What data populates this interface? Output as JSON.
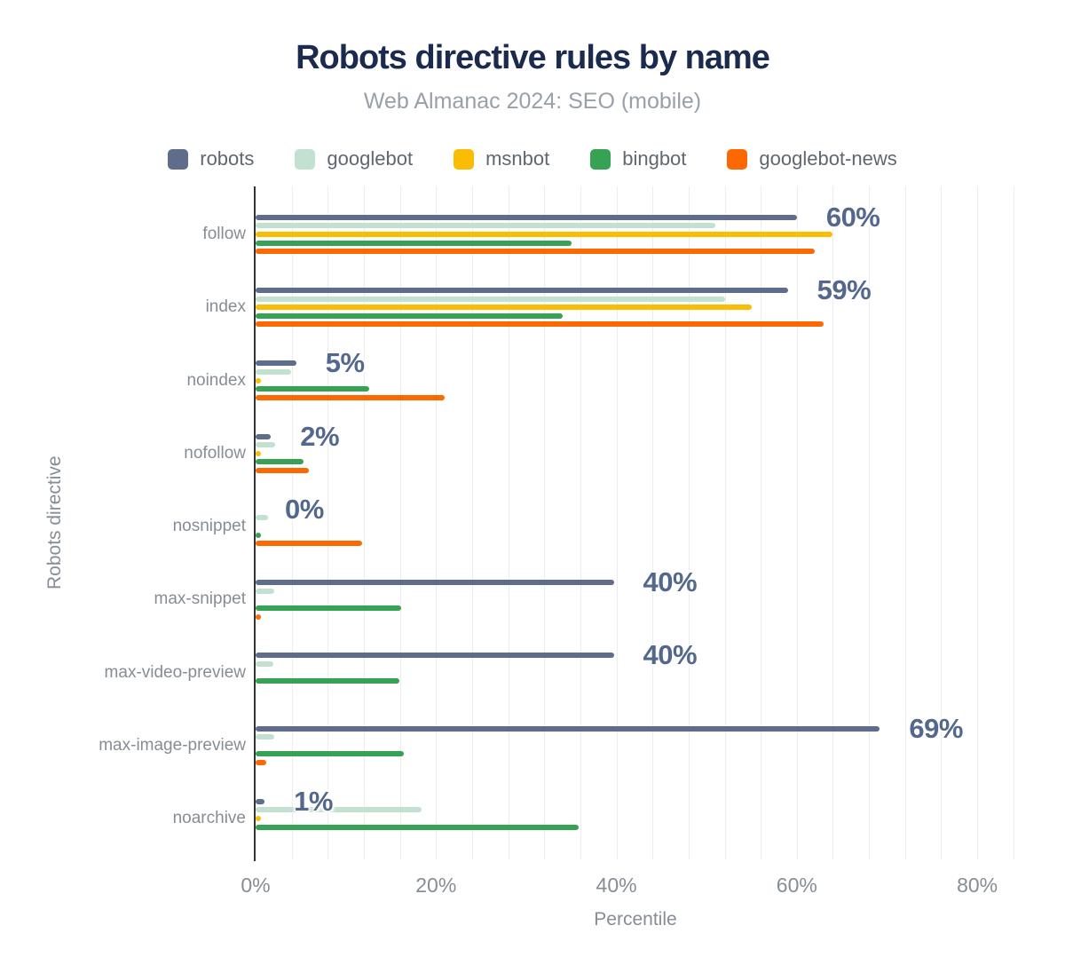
{
  "title": "Robots directive rules by name",
  "subtitle": "Web Almanac 2024: SEO (mobile)",
  "colors": {
    "title": "#1b2b4d",
    "subtitle": "#99a0a8",
    "axis_text": "#868d95",
    "legend_text": "#5f6770",
    "value_label": "#54688e",
    "axis_line": "#333333",
    "gridline": "#ededed",
    "background": "#ffffff"
  },
  "chart_data": {
    "type": "bar",
    "orientation": "horizontal",
    "title": "Robots directive rules by name",
    "subtitle": "Web Almanac 2024: SEO (mobile)",
    "xlabel": "Percentile",
    "ylabel": "Robots directive",
    "x_ticks": [
      "0%",
      "20%",
      "40%",
      "60%",
      "80%"
    ],
    "x_tick_values": [
      0,
      20,
      40,
      60,
      80
    ],
    "xlim": [
      0,
      84
    ],
    "grid": "vertical minor gridlines every 4%",
    "legend_position": "top",
    "categories": [
      "follow",
      "index",
      "noindex",
      "nofollow",
      "nosnippet",
      "max-snippet",
      "max-video-preview",
      "max-image-preview",
      "noarchive"
    ],
    "series": [
      {
        "name": "robots",
        "color": "#5e6d8b",
        "values": [
          60,
          59,
          4.5,
          1.7,
          0,
          39.7,
          39.7,
          69.2,
          1
        ]
      },
      {
        "name": "googlebot",
        "color": "#c3e1d0",
        "values": [
          51,
          52,
          3.9,
          2.2,
          1.4,
          2.1,
          2,
          2.1,
          18.4
        ]
      },
      {
        "name": "msnbot",
        "color": "#fabd03",
        "values": [
          64,
          55,
          0.4,
          0.4,
          0,
          0,
          0,
          0,
          0.4
        ]
      },
      {
        "name": "bingbot",
        "color": "#35a254",
        "values": [
          35,
          34,
          12.6,
          5.3,
          0.4,
          16.1,
          15.9,
          16.4,
          35.8
        ]
      },
      {
        "name": "googlebot-news",
        "color": "#fc6903",
        "values": [
          62,
          63,
          21,
          5.9,
          11.8,
          0.3,
          0,
          1.2,
          0
        ]
      }
    ],
    "value_labels": {
      "labeled_series": "robots",
      "labels": [
        "60%",
        "59%",
        "5%",
        "2%",
        "0%",
        "40%",
        "40%",
        "69%",
        "1%"
      ]
    }
  }
}
